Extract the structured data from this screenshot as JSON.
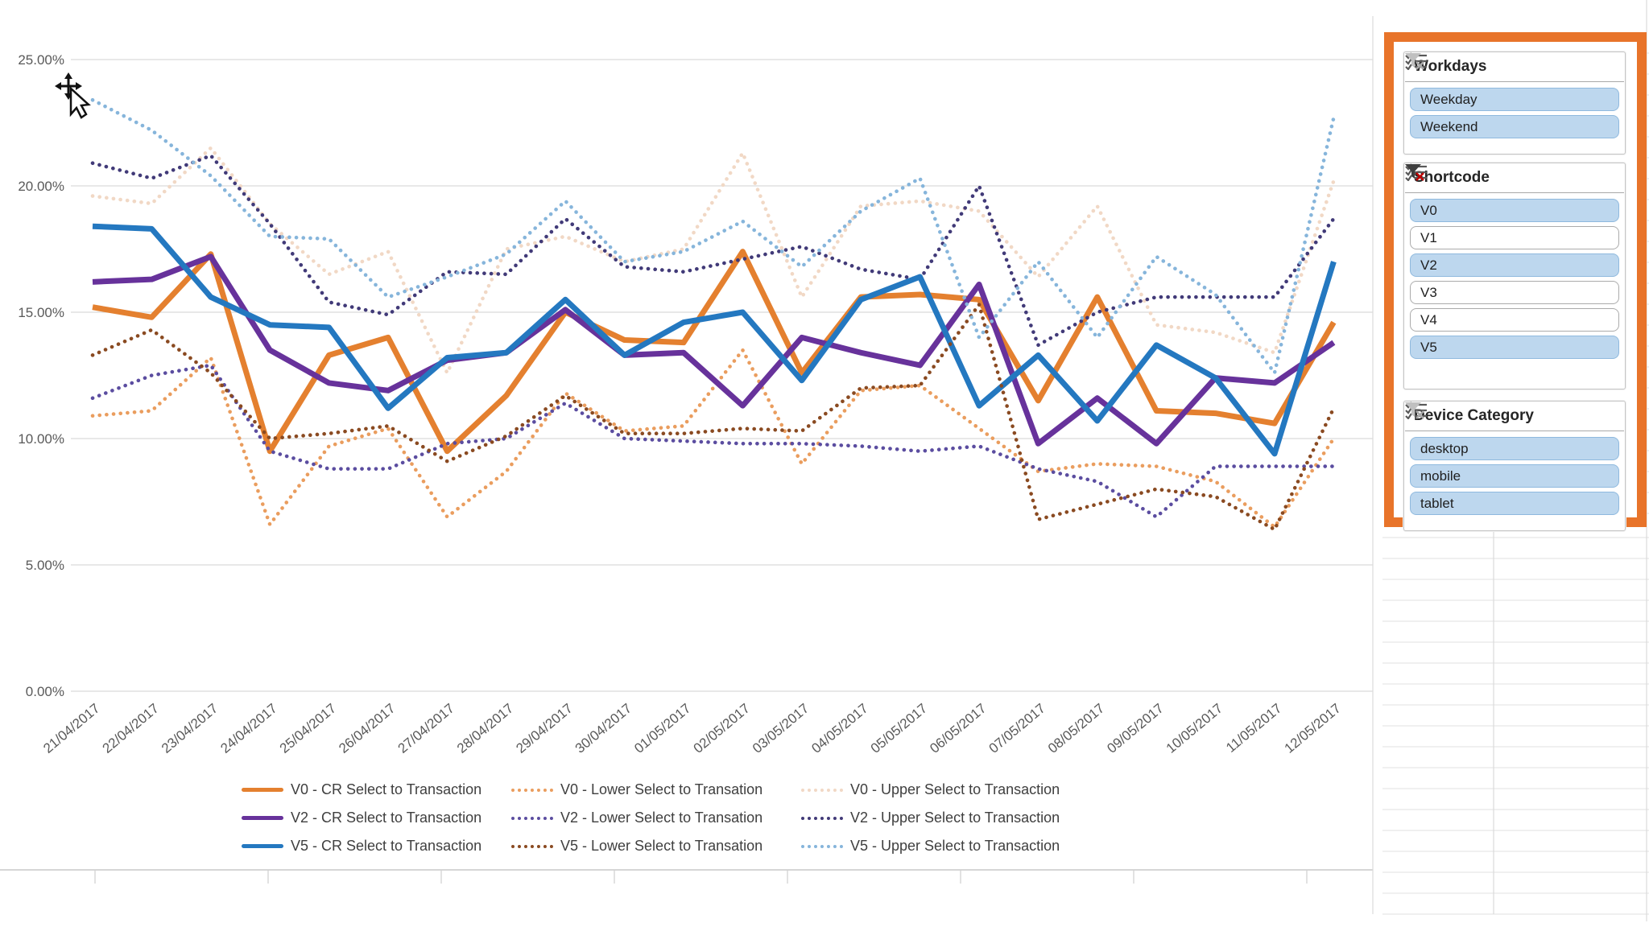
{
  "chart_data": {
    "type": "line",
    "title": "",
    "xlabel": "",
    "ylabel": "",
    "ylim": [
      0,
      25
    ],
    "grid": true,
    "legend_position": "bottom",
    "yticks": [
      "0.00%",
      "5.00%",
      "10.00%",
      "15.00%",
      "20.00%",
      "25.00%"
    ],
    "x": [
      "21/04/2017",
      "22/04/2017",
      "23/04/2017",
      "24/04/2017",
      "25/04/2017",
      "26/04/2017",
      "27/04/2017",
      "28/04/2017",
      "29/04/2017",
      "30/04/2017",
      "01/05/2017",
      "02/05/2017",
      "03/05/2017",
      "04/05/2017",
      "05/05/2017",
      "06/05/2017",
      "07/05/2017",
      "08/05/2017",
      "09/05/2017",
      "10/05/2017",
      "11/05/2017",
      "12/05/2017"
    ],
    "series": [
      {
        "name": "V0 - CR Select to Transaction",
        "style": "solid",
        "color": "#E4802F",
        "values": [
          15.2,
          14.8,
          17.3,
          9.5,
          13.3,
          14.0,
          9.5,
          11.7,
          15.0,
          13.9,
          13.8,
          17.4,
          12.6,
          15.6,
          15.7,
          15.5,
          11.5,
          15.6,
          11.1,
          11.0,
          10.6,
          14.6
        ]
      },
      {
        "name": "V0 - Lower Select to Transation",
        "style": "dotted",
        "color": "#EA9D5E",
        "values": [
          10.9,
          11.1,
          13.2,
          6.6,
          9.7,
          10.4,
          6.9,
          8.7,
          11.8,
          10.3,
          10.5,
          13.5,
          9.0,
          11.9,
          12.1,
          10.4,
          8.7,
          9.0,
          8.9,
          8.3,
          6.5,
          10.0
        ]
      },
      {
        "name": "V0 - Upper Select to Transaction",
        "style": "dotted",
        "color": "#F1D8C5",
        "values": [
          19.6,
          19.3,
          21.5,
          18.5,
          16.5,
          17.4,
          12.6,
          17.5,
          18.0,
          17.0,
          17.5,
          21.3,
          15.6,
          19.2,
          19.4,
          19.0,
          16.4,
          19.2,
          14.5,
          14.2,
          13.4,
          20.2
        ]
      },
      {
        "name": "V2 - CR Select to Transaction",
        "style": "solid",
        "color": "#67329B",
        "values": [
          16.2,
          16.3,
          17.2,
          13.5,
          12.2,
          11.9,
          13.1,
          13.4,
          15.1,
          13.3,
          13.4,
          11.3,
          14.0,
          13.4,
          12.9,
          16.1,
          9.8,
          11.6,
          9.8,
          12.4,
          12.2,
          13.8
        ]
      },
      {
        "name": "V2 - Lower Select to Transation",
        "style": "dotted",
        "color": "#5B4DA0",
        "values": [
          11.6,
          12.5,
          12.9,
          9.5,
          8.8,
          8.8,
          9.8,
          10.0,
          11.4,
          10.0,
          9.9,
          9.8,
          9.8,
          9.7,
          9.5,
          9.7,
          8.8,
          8.3,
          6.9,
          8.9,
          8.9,
          8.9
        ]
      },
      {
        "name": "V2 - Upper Select to Transaction",
        "style": "dotted",
        "color": "#413A78",
        "values": [
          20.9,
          20.3,
          21.2,
          18.5,
          15.4,
          14.9,
          16.6,
          16.5,
          18.7,
          16.8,
          16.6,
          17.1,
          17.6,
          16.7,
          16.3,
          20.0,
          13.7,
          15.0,
          15.6,
          15.6,
          15.6,
          18.7
        ]
      },
      {
        "name": "V5 - CR Select to Transaction",
        "style": "solid",
        "color": "#2478C0",
        "values": [
          18.4,
          18.3,
          15.6,
          14.5,
          14.4,
          11.2,
          13.2,
          13.4,
          15.5,
          13.3,
          14.6,
          15.0,
          12.3,
          15.5,
          16.4,
          11.3,
          13.3,
          10.7,
          13.7,
          12.4,
          9.4,
          17.0
        ]
      },
      {
        "name": "V5 - Lower Select to Transation",
        "style": "dotted",
        "color": "#8A4A21",
        "values": [
          13.3,
          14.3,
          12.6,
          10.0,
          10.2,
          10.5,
          9.1,
          10.1,
          11.7,
          10.2,
          10.2,
          10.4,
          10.3,
          12.0,
          12.1,
          15.3,
          6.8,
          7.4,
          8.0,
          7.7,
          6.4,
          11.2
        ]
      },
      {
        "name": "V5 - Upper Select to Transaction",
        "style": "dotted",
        "color": "#86B5DB",
        "values": [
          23.4,
          22.2,
          20.4,
          18.0,
          17.9,
          15.6,
          16.4,
          17.3,
          19.4,
          17.0,
          17.4,
          18.6,
          16.8,
          19.0,
          20.3,
          14.0,
          17.0,
          14.0,
          17.2,
          15.7,
          12.6,
          22.7
        ]
      }
    ]
  },
  "slicers": [
    {
      "title": "Workdays",
      "clear_filter_active": false,
      "items": [
        {
          "label": "Weekday",
          "selected": true
        },
        {
          "label": "Weekend",
          "selected": true
        }
      ]
    },
    {
      "title": "Shortcode",
      "clear_filter_active": true,
      "items": [
        {
          "label": "V0",
          "selected": true
        },
        {
          "label": "V1",
          "selected": false
        },
        {
          "label": "V2",
          "selected": true
        },
        {
          "label": "V3",
          "selected": false
        },
        {
          "label": "V4",
          "selected": false
        },
        {
          "label": "V5",
          "selected": true
        }
      ]
    },
    {
      "title": "Device Category",
      "clear_filter_active": false,
      "items": [
        {
          "label": "desktop",
          "selected": true
        },
        {
          "label": "mobile",
          "selected": true
        },
        {
          "label": "tablet",
          "selected": true
        }
      ]
    }
  ],
  "colors": {
    "panel_border": "#E8742A",
    "selected_item_fill": "#BDD7EE",
    "gridline": "#D9D9D9",
    "axis_text": "#595959",
    "clear_filter_red": "#C00000"
  }
}
